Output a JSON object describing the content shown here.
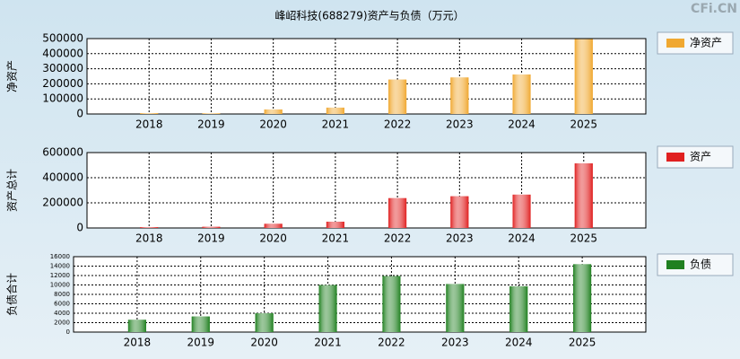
{
  "title": "峰岹科技(688279)资产与负债（万元）",
  "watermark": "CFi.CN",
  "chart_data": [
    {
      "type": "bar",
      "ylabel": "净资产",
      "categories": [
        "2018",
        "2019",
        "2020",
        "2021",
        "2022",
        "2023",
        "2024",
        "2025"
      ],
      "series": [
        {
          "name": "净资产",
          "color": "#f0a830",
          "values": [
            5000,
            4000,
            30000,
            42000,
            228000,
            242000,
            262000,
            497000
          ]
        }
      ],
      "ylim": [
        0,
        500000
      ],
      "yticks": [
        0,
        100000,
        200000,
        300000,
        400000,
        500000
      ],
      "grid": true,
      "legend": "right"
    },
    {
      "type": "bar",
      "ylabel": "资产总计",
      "categories": [
        "2018",
        "2019",
        "2020",
        "2021",
        "2022",
        "2023",
        "2024",
        "2025"
      ],
      "series": [
        {
          "name": "资产",
          "color": "#e02020",
          "values": [
            6000,
            9000,
            33000,
            50000,
            237000,
            252000,
            265000,
            514000
          ]
        }
      ],
      "ylim": [
        0,
        600000
      ],
      "yticks": [
        0,
        200000,
        400000,
        600000
      ],
      "grid": true,
      "legend": "right"
    },
    {
      "type": "bar",
      "ylabel": "负债合计",
      "categories": [
        "2018",
        "2019",
        "2020",
        "2021",
        "2022",
        "2023",
        "2024",
        "2025"
      ],
      "series": [
        {
          "name": "负债",
          "color": "#208020",
          "values": [
            2600,
            3300,
            4000,
            10000,
            11900,
            10200,
            9700,
            14400
          ]
        }
      ],
      "ylim": [
        0,
        16000
      ],
      "yticks": [
        0,
        2000,
        4000,
        6000,
        8000,
        10000,
        12000,
        14000,
        16000
      ],
      "grid": true,
      "legend": "right"
    }
  ]
}
